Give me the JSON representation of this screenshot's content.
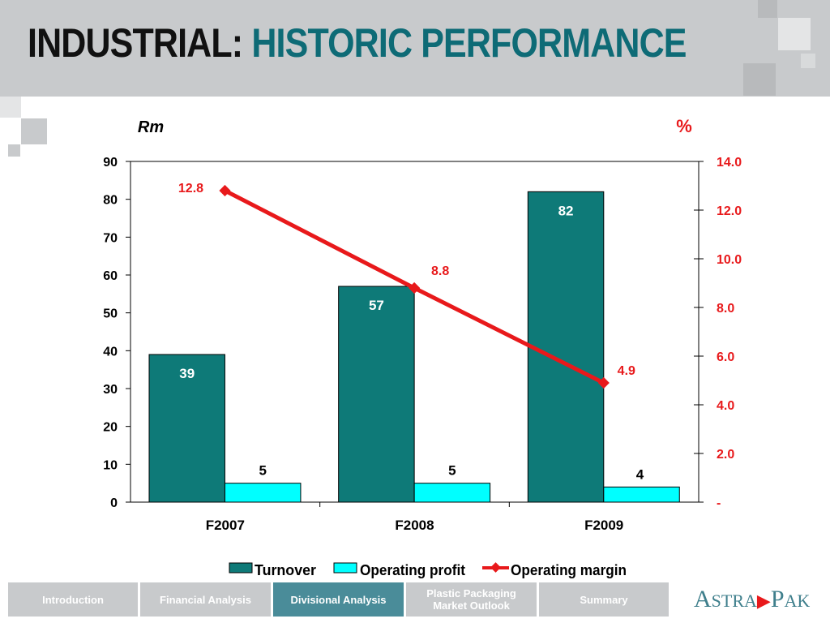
{
  "title": {
    "part1": "INDUSTRIAL:",
    "part2": "HISTORIC PERFORMANCE"
  },
  "colors": {
    "turnover": "#0e7a78",
    "operating_profit": "#00ffff",
    "operating_margin": "#e8191b",
    "title_accent": "#0e6b76",
    "nav_active": "#4a8c99",
    "nav_inactive": "#c8cacc"
  },
  "chart_data": {
    "type": "bar",
    "categories": [
      "F2007",
      "F2008",
      "F2009"
    ],
    "left_axis": {
      "unit_label": "Rm",
      "ylim": [
        0,
        90
      ],
      "ticks": [
        "0",
        "10",
        "20",
        "30",
        "40",
        "50",
        "60",
        "70",
        "80",
        "90"
      ]
    },
    "right_axis": {
      "unit_label": "%",
      "ylim": [
        0,
        14
      ],
      "ticks": [
        "-",
        "2.0",
        "4.0",
        "6.0",
        "8.0",
        "10.0",
        "12.0",
        "14.0"
      ]
    },
    "series": [
      {
        "name": "Turnover",
        "type": "bar",
        "axis": "left",
        "values": [
          39,
          57,
          82
        ],
        "labels": [
          "39",
          "57",
          "82"
        ]
      },
      {
        "name": "Operating profit",
        "type": "bar",
        "axis": "left",
        "values": [
          5,
          5,
          4
        ],
        "labels": [
          "5",
          "5",
          "4"
        ]
      },
      {
        "name": "Operating margin",
        "type": "line",
        "axis": "right",
        "values": [
          12.8,
          8.8,
          4.9
        ],
        "labels": [
          "12.8",
          "8.8",
          "4.9"
        ]
      }
    ],
    "legend_position": "bottom",
    "grid": false
  },
  "nav": {
    "items": [
      {
        "label": "Introduction",
        "active": false
      },
      {
        "label": "Financial Analysis",
        "active": false
      },
      {
        "label": "Divisional Analysis",
        "active": true
      },
      {
        "label": "Plastic Packaging\nMarket Outlook",
        "active": false
      },
      {
        "label": "Summary",
        "active": false
      }
    ]
  },
  "logo": {
    "text_a": "A",
    "text_stra": "STRA",
    "text_p": "P",
    "text_ak": "AK"
  }
}
